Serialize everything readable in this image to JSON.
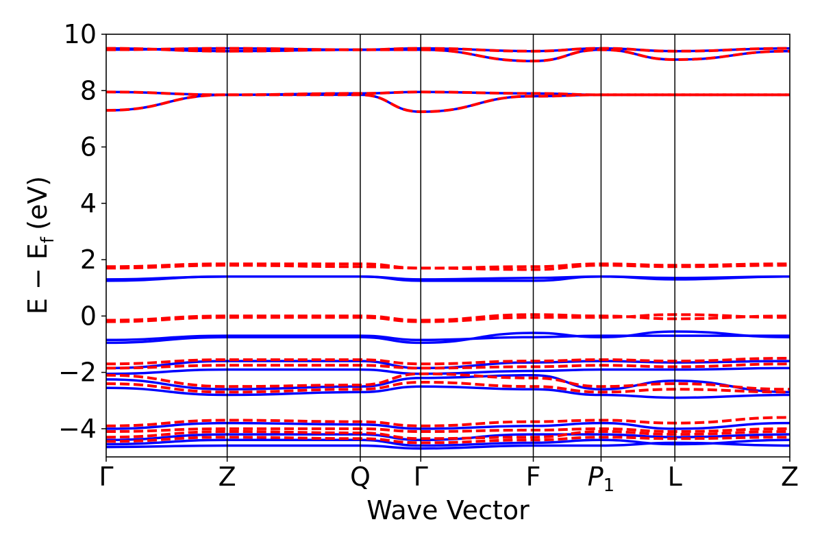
{
  "chart_data": {
    "type": "line",
    "title": "",
    "xlabel": "Wave Vector",
    "ylabel": "E − E",
    "ylabel_subscript": "f",
    "ylabel_unit": "(eV)",
    "ylim": [
      -5,
      10
    ],
    "yticks": [
      -4,
      -2,
      0,
      2,
      4,
      6,
      8,
      10
    ],
    "ytick_labels": [
      "−4",
      "−2",
      "0",
      "2",
      "4",
      "6",
      "8",
      "10"
    ],
    "kpoints": [
      {
        "label": "Γ",
        "sub": "",
        "x": 0.0
      },
      {
        "label": "Z",
        "sub": "",
        "x": 1.0
      },
      {
        "label": "Q",
        "sub": "",
        "x": 2.1
      },
      {
        "label": "Γ",
        "sub": "",
        "x": 2.6
      },
      {
        "label": "F",
        "sub": "",
        "x": 3.53
      },
      {
        "label": "P",
        "sub": "1",
        "x": 4.09
      },
      {
        "label": "L",
        "sub": "",
        "x": 4.7
      },
      {
        "label": "Z",
        "sub": "",
        "x": 5.65
      }
    ],
    "grid": false,
    "legend": "none",
    "series": [
      {
        "style": "solid",
        "color": "#0000ff",
        "bands": [
          [
            7.3,
            7.85,
            7.85,
            7.25,
            7.8,
            7.85,
            7.85,
            7.85
          ],
          [
            7.95,
            7.85,
            7.9,
            7.95,
            7.9,
            7.85,
            7.85,
            7.85
          ],
          [
            9.45,
            9.5,
            9.45,
            9.5,
            9.4,
            9.5,
            9.4,
            9.5
          ],
          [
            9.5,
            9.4,
            9.45,
            9.45,
            9.05,
            9.45,
            9.1,
            9.4
          ],
          [
            1.25,
            1.4,
            1.4,
            1.25,
            1.25,
            1.4,
            1.3,
            1.4
          ],
          [
            1.3,
            1.4,
            1.4,
            1.3,
            1.35,
            1.4,
            1.35,
            1.4
          ],
          [
            -0.95,
            -0.75,
            -0.75,
            -0.95,
            -0.6,
            -0.75,
            -0.55,
            -0.75
          ],
          [
            -0.85,
            -0.7,
            -0.7,
            -0.85,
            -0.75,
            -0.7,
            -0.7,
            -0.7
          ],
          [
            -1.85,
            -1.6,
            -1.6,
            -1.85,
            -1.65,
            -1.6,
            -1.65,
            -1.6
          ],
          [
            -2.05,
            -1.9,
            -1.9,
            -2.05,
            -1.95,
            -1.9,
            -1.9,
            -1.85
          ],
          [
            -2.25,
            -2.6,
            -2.5,
            -2.2,
            -2.1,
            -2.6,
            -2.3,
            -2.7
          ],
          [
            -2.55,
            -2.8,
            -2.7,
            -2.5,
            -2.6,
            -2.8,
            -2.9,
            -2.8
          ],
          [
            -4.0,
            -3.8,
            -3.85,
            -4.0,
            -3.9,
            -3.8,
            -4.0,
            -3.8
          ],
          [
            -4.4,
            -4.2,
            -4.2,
            -4.4,
            -4.2,
            -4.2,
            -4.3,
            -4.2
          ],
          [
            -4.55,
            -4.4,
            -4.4,
            -4.6,
            -4.5,
            -4.4,
            -4.55,
            -4.4
          ],
          [
            -4.65,
            -4.6,
            -4.6,
            -4.7,
            -4.6,
            -4.6,
            -4.5,
            -4.6
          ]
        ]
      },
      {
        "style": "dashed",
        "color": "#ff0000",
        "bands": [
          [
            7.3,
            7.85,
            7.85,
            7.25,
            7.8,
            7.85,
            7.85,
            7.85
          ],
          [
            7.95,
            7.85,
            7.9,
            7.95,
            7.9,
            7.85,
            7.85,
            7.85
          ],
          [
            9.45,
            9.5,
            9.45,
            9.5,
            9.4,
            9.5,
            9.4,
            9.5
          ],
          [
            9.5,
            9.4,
            9.45,
            9.45,
            9.05,
            9.45,
            9.1,
            9.4
          ],
          [
            1.75,
            1.85,
            1.85,
            1.7,
            1.75,
            1.85,
            1.8,
            1.85
          ],
          [
            1.7,
            1.8,
            1.75,
            1.7,
            1.65,
            1.8,
            1.75,
            1.8
          ],
          [
            -0.2,
            -0.05,
            -0.05,
            -0.2,
            -0.05,
            -0.05,
            0.05,
            -0.05
          ],
          [
            -0.15,
            0.0,
            0.0,
            -0.15,
            0.05,
            0.0,
            -0.1,
            0.0
          ],
          [
            -1.7,
            -1.55,
            -1.55,
            -1.7,
            -1.6,
            -1.55,
            -1.6,
            -1.5
          ],
          [
            -1.85,
            -1.75,
            -1.75,
            -1.85,
            -1.8,
            -1.75,
            -1.8,
            -1.7
          ],
          [
            -2.1,
            -2.5,
            -2.45,
            -2.05,
            -2.2,
            -2.5,
            -2.4,
            -2.6
          ],
          [
            -2.4,
            -2.7,
            -2.6,
            -2.35,
            -2.5,
            -2.7,
            -2.6,
            -2.7
          ],
          [
            -3.9,
            -3.7,
            -3.75,
            -3.9,
            -3.75,
            -3.7,
            -3.8,
            -3.6
          ],
          [
            -4.1,
            -4.0,
            -4.0,
            -4.1,
            -4.05,
            -4.0,
            -4.1,
            -4.0
          ],
          [
            -4.3,
            -4.1,
            -4.15,
            -4.35,
            -4.3,
            -4.1,
            -4.2,
            -4.1
          ],
          [
            -4.45,
            -4.3,
            -4.35,
            -4.5,
            -4.4,
            -4.3,
            -4.35,
            -4.3
          ]
        ]
      }
    ]
  }
}
